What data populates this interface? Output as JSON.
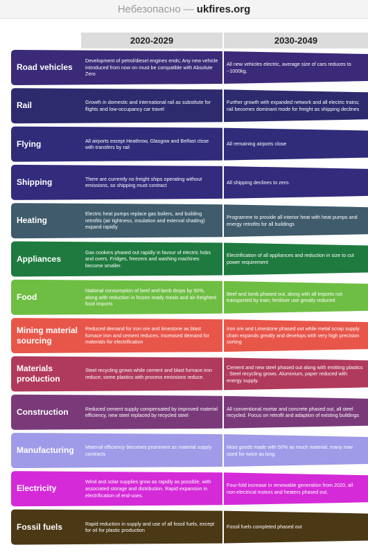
{
  "browser": {
    "security": "Небезопасно",
    "separator": "—",
    "domain": "ukfires.org"
  },
  "columns": [
    "2020-2029",
    "2030-2049"
  ],
  "rows": [
    {
      "label": "Road vehicles",
      "color": "#3b2a78",
      "col1": "Development of petrol/diesel engines ends; Any new vehicle introduced from now on must be compatible with Absolute Zero",
      "col2": "All new vehicles electric, average size of cars reduces to ~1000kg."
    },
    {
      "label": "Rail",
      "color": "#2d2a6e",
      "col1": "Growth in domestic and international rail as substitute for flights and low-occupancy car travel",
      "col2": "Further growth with expanded network and all electric trains; rail becomes dominant mode for freight as shipping declines"
    },
    {
      "label": "Flying",
      "color": "#302c7a",
      "col1": "All airports except Heathrow, Glasgow and Belfast close with transfers by rail",
      "col2": "All remaining airports close"
    },
    {
      "label": "Shipping",
      "color": "#332b7c",
      "col1": "There are currently no freight ships operating without emissions, so shipping must contract",
      "col2": "All shipping declines to zero."
    },
    {
      "label": "Heating",
      "color": "#3f5b6c",
      "col1": "Electric heat pumps replace gas boilers, and building retrofits (air tightness, insulation and external shading) expand rapidly",
      "col2": "Programme to provide all interior heat with heat pumps and energy retrofits for all buildings"
    },
    {
      "label": "Appliances",
      "color": "#1f7a3f",
      "col1": "Gas cookers phased out rapidly in favour of electric hobs and overs. Fridges, freezers and washing machines become smaller.",
      "col2": "Electrification of all appliances and reduction in size to cut power requirement"
    },
    {
      "label": "Food",
      "color": "#6fbe44",
      "col1": "National consumption of beef and lamb drops by 50%, along with reduction in frozen ready meals and air-freighted food imports",
      "col2": "Beef and lamb phased out, along with all imports not transported by train; fertiliser use greatly reduced"
    },
    {
      "label": "Mining material sourcing",
      "color": "#e8564a",
      "col1": "Reduced demand for iron ore and limestone as blast furnace iron and cement reduces. Increased demand for materials for electrification",
      "col2": "Iron ore and Limestone phased out while metal scrap supply chain expands greatly and develops with very high precision sorting"
    },
    {
      "label": "Materials production",
      "color": "#b03a5c",
      "col1": "Steel recycling grows while cement and blast furnace iron reduce; some plastics with process emissions reduce.",
      "col2": "Cement and new steel phased out along with emitting plastics . Steel recycling grows. Aluminium, paper reduced with energy supply."
    },
    {
      "label": "Construction",
      "color": "#7a3a7a",
      "col1": "Reduced cement supply compensated by improved material efficiency, new steel replaced by recycled steel",
      "col2": "All conventional mortar and concrete phased out, all steel recycled. Focus on retrofit and adaption of existing buildings"
    },
    {
      "label": "Manufacturing",
      "color": "#9f9be8",
      "col1": "Material efficiency becomes prominent as material supply contracts",
      "col2": "Most goods made with 50% as much material, many now used for twice as long"
    },
    {
      "label": "Electricity",
      "color": "#d52ad8",
      "col1": "Wind and solar supplies grow as rapidly as possible, with associated storage and distribution. Rapid expansion in electrification of end-uses.",
      "col2": "Four-fold increase in renewable generation from 2020, all non-electrical motors and heaters phased out."
    },
    {
      "label": "Fossil fuels",
      "color": "#4b3815",
      "col1": "Rapid reduction in supply and use of all fossil fuels, except for oil for plastic production",
      "col2": "Fossil fuels completed phased out"
    }
  ]
}
